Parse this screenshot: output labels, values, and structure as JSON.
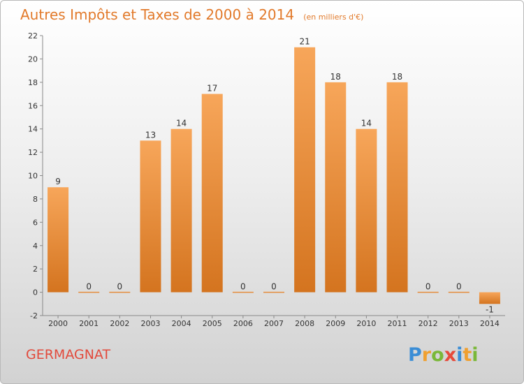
{
  "chart_data": {
    "type": "bar",
    "title": "Autres Impôts et Taxes de 2000 à 2014",
    "subtitle": "(en milliers d'€)",
    "categories": [
      "2000",
      "2001",
      "2002",
      "2003",
      "2004",
      "2005",
      "2006",
      "2007",
      "2008",
      "2009",
      "2010",
      "2011",
      "2012",
      "2013",
      "2014"
    ],
    "values": [
      9,
      0,
      0,
      13,
      14,
      17,
      0,
      0,
      21,
      18,
      14,
      18,
      0,
      0,
      -1
    ],
    "data_labels": [
      "9",
      "0",
      "0",
      "13",
      "14",
      "17",
      "0",
      "0",
      "21",
      "18",
      "14",
      "18",
      "0",
      "0",
      "-1"
    ],
    "ylim": [
      -2,
      22
    ],
    "yticks": [
      "-2",
      "0",
      "2",
      "4",
      "6",
      "8",
      "10",
      "12",
      "14",
      "16",
      "18",
      "20",
      "22"
    ],
    "xlabel": "",
    "ylabel": "",
    "grid": false,
    "legend": "none",
    "colors": {
      "bar_top": "#f7a65a",
      "bar_bottom": "#d4741f",
      "title": "#e27a2b",
      "commune": "#e24a3c"
    }
  },
  "commune_name": "GERMAGNAT",
  "logo": {
    "letters": [
      "P",
      "r",
      "o",
      "x",
      "i",
      "t",
      "i"
    ],
    "colors": [
      "#3a8dd6",
      "#f0a030",
      "#7ab838",
      "#e64a3a",
      "#3a8dd6",
      "#f0a030",
      "#7ab838"
    ]
  }
}
